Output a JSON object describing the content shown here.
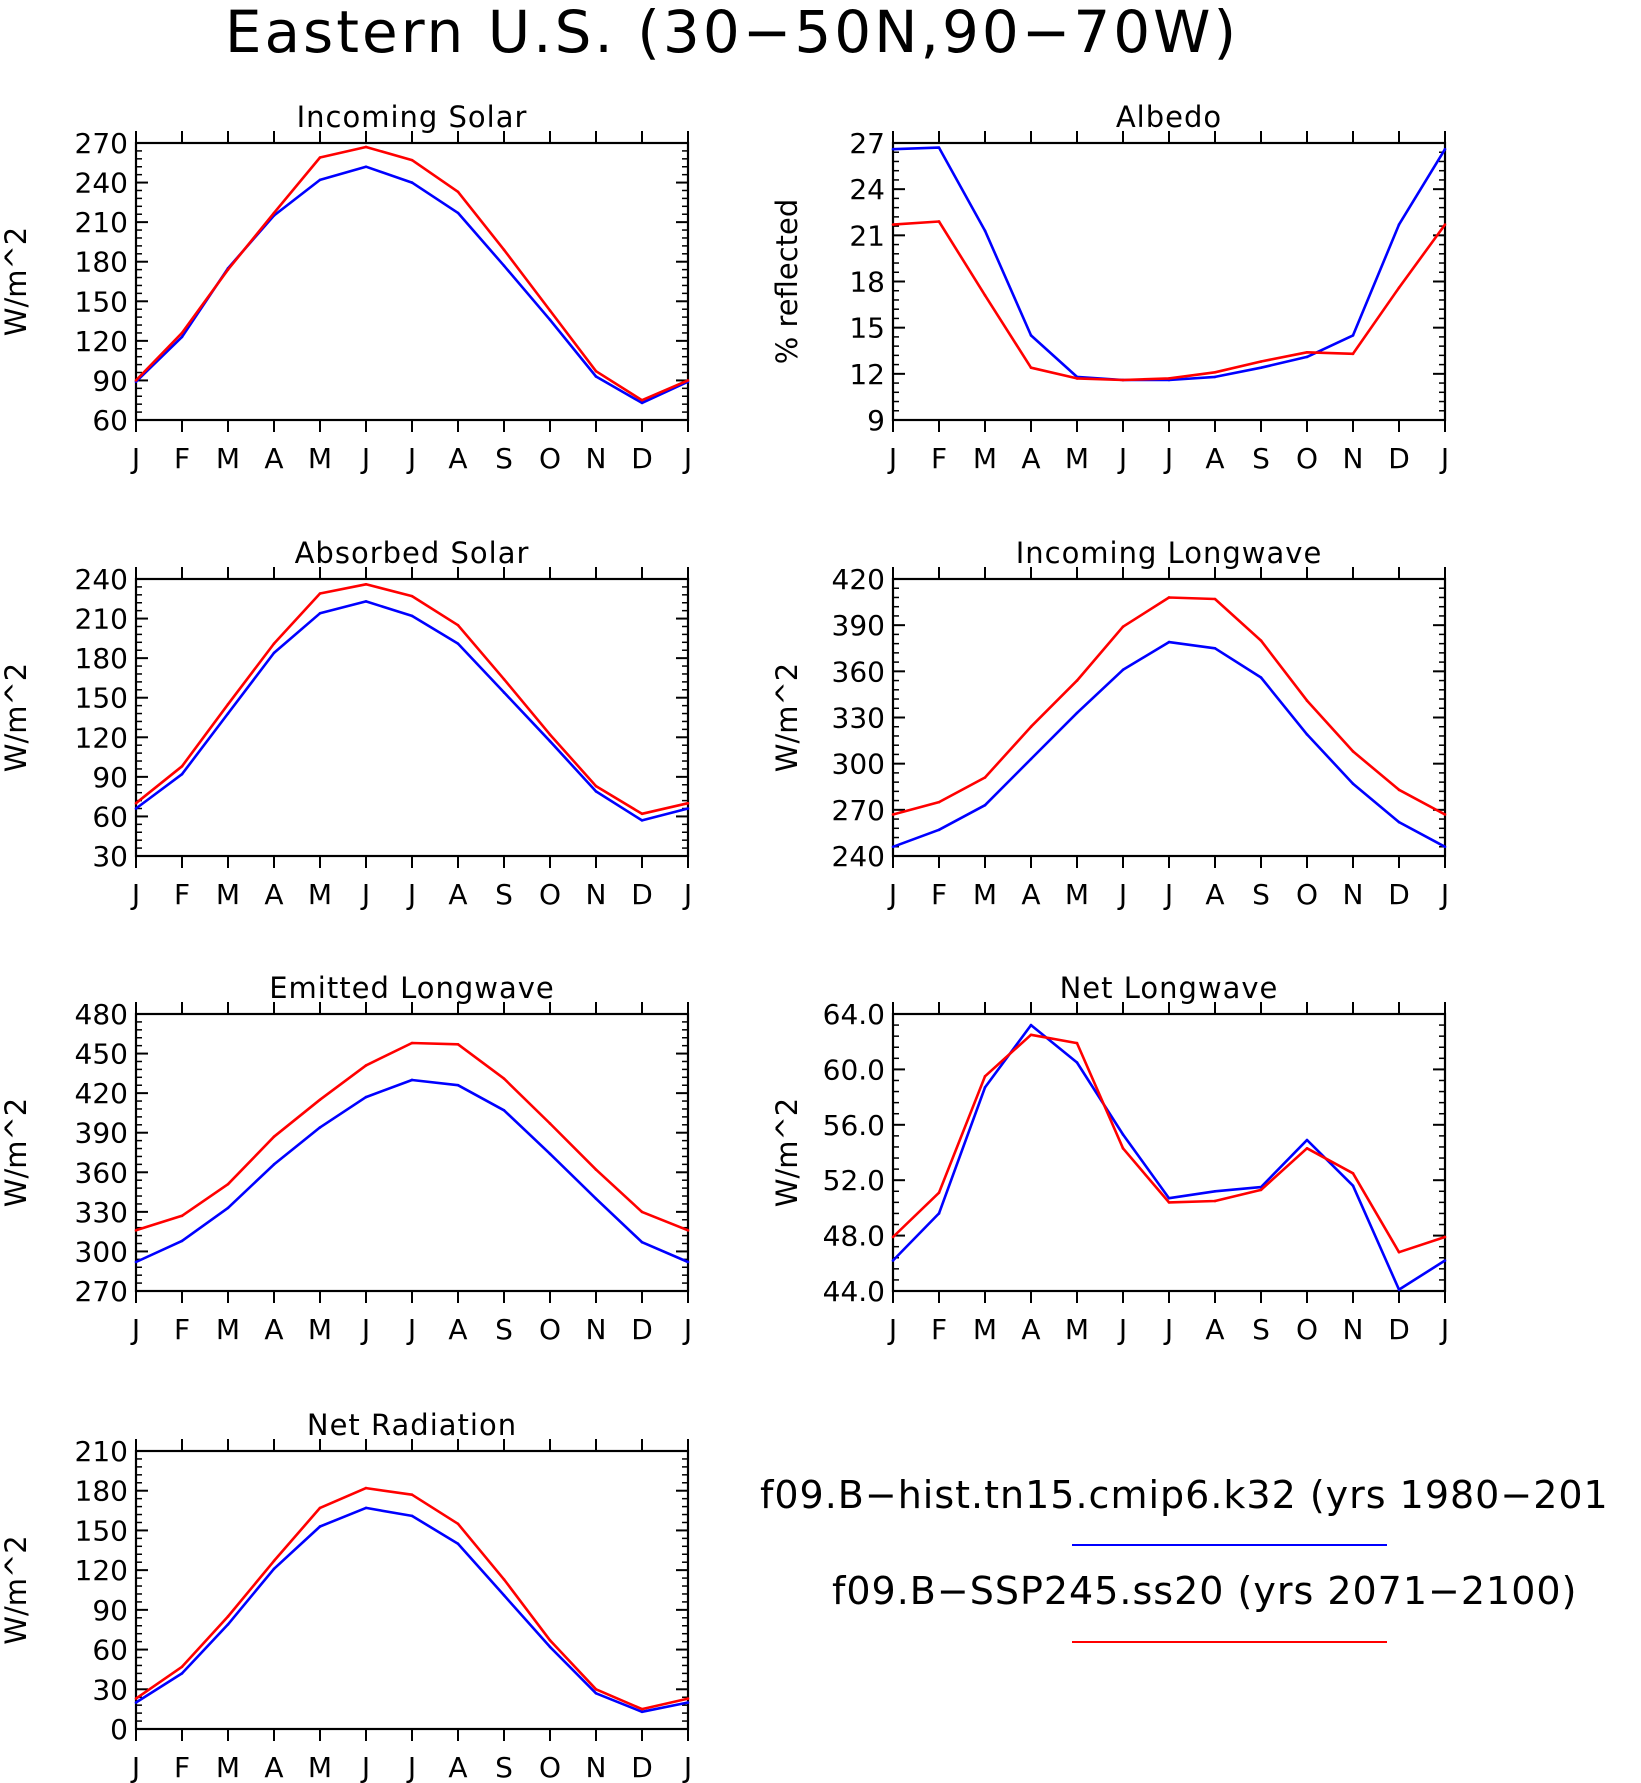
{
  "figure": {
    "title": "Eastern U.S. (30−50N,90−70W)",
    "months": [
      "J",
      "F",
      "M",
      "A",
      "M",
      "J",
      "J",
      "A",
      "S",
      "O",
      "N",
      "D",
      "J"
    ],
    "colors": {
      "hist": "#0000ff",
      "ssp": "#ff0000",
      "axis": "#000000"
    }
  },
  "legend": {
    "entries": [
      {
        "label": "f09.B−hist.tn15.cmip6.k32 (yrs 1980−201",
        "color": "#0000ff"
      },
      {
        "label": "f09.B−SSP245.ss20 (yrs 2071−2100)",
        "color": "#ff0000"
      }
    ]
  },
  "chart_data": [
    {
      "type": "line",
      "title": "Incoming Solar",
      "ylabel": "W/m^2",
      "ylim": [
        60,
        270
      ],
      "yticks": [
        "60",
        "90",
        "120",
        "150",
        "180",
        "210",
        "240",
        "270"
      ],
      "x": [
        "J",
        "F",
        "M",
        "A",
        "M",
        "J",
        "J",
        "A",
        "S",
        "O",
        "N",
        "D",
        "J"
      ],
      "series": [
        {
          "key": "hist",
          "values": [
            89,
            123,
            175,
            215,
            242,
            252,
            240,
            217,
            177,
            136,
            93,
            73,
            89
          ]
        },
        {
          "key": "ssp",
          "values": [
            90,
            126,
            174,
            217,
            259,
            267,
            257,
            233,
            189,
            143,
            97,
            75,
            90
          ]
        }
      ]
    },
    {
      "type": "line",
      "title": "Albedo",
      "ylabel": "% reflected",
      "ylim": [
        9,
        27
      ],
      "yticks": [
        "9",
        "12",
        "15",
        "18",
        "21",
        "24",
        "27"
      ],
      "x": [
        "J",
        "F",
        "M",
        "A",
        "M",
        "J",
        "J",
        "A",
        "S",
        "O",
        "N",
        "D",
        "J"
      ],
      "series": [
        {
          "key": "hist",
          "values": [
            26.6,
            26.7,
            21.3,
            14.5,
            11.8,
            11.6,
            11.6,
            11.8,
            12.4,
            13.1,
            14.5,
            21.7,
            26.6
          ]
        },
        {
          "key": "ssp",
          "values": [
            21.7,
            21.9,
            17.1,
            12.4,
            11.7,
            11.6,
            11.7,
            12.1,
            12.8,
            13.4,
            13.3,
            17.6,
            21.7
          ]
        }
      ]
    },
    {
      "type": "line",
      "title": "Absorbed Solar",
      "ylabel": "W/m^2",
      "ylim": [
        30,
        240
      ],
      "yticks": [
        "30",
        "60",
        "90",
        "120",
        "150",
        "180",
        "210",
        "240"
      ],
      "x": [
        "J",
        "F",
        "M",
        "A",
        "M",
        "J",
        "J",
        "A",
        "S",
        "O",
        "N",
        "D",
        "J"
      ],
      "series": [
        {
          "key": "hist",
          "values": [
            66,
            92,
            138,
            184,
            214,
            223,
            212,
            191,
            154,
            117,
            79,
            57,
            66
          ]
        },
        {
          "key": "ssp",
          "values": [
            70,
            98,
            145,
            191,
            229,
            236,
            227,
            205,
            164,
            122,
            83,
            62,
            70
          ]
        }
      ]
    },
    {
      "type": "line",
      "title": "Incoming Longwave",
      "ylabel": "W/m^2",
      "ylim": [
        240,
        420
      ],
      "yticks": [
        "240",
        "270",
        "300",
        "330",
        "360",
        "390",
        "420"
      ],
      "x": [
        "J",
        "F",
        "M",
        "A",
        "M",
        "J",
        "J",
        "A",
        "S",
        "O",
        "N",
        "D",
        "J"
      ],
      "series": [
        {
          "key": "hist",
          "values": [
            246,
            257,
            273,
            303,
            333,
            361,
            379,
            375,
            356,
            319,
            287,
            262,
            246
          ]
        },
        {
          "key": "ssp",
          "values": [
            267,
            275,
            291,
            324,
            354,
            389,
            408,
            407,
            380,
            341,
            308,
            283,
            267
          ]
        }
      ]
    },
    {
      "type": "line",
      "title": "Emitted Longwave",
      "ylabel": "W/m^2",
      "ylim": [
        270,
        480
      ],
      "yticks": [
        "270",
        "300",
        "330",
        "360",
        "390",
        "420",
        "450",
        "480"
      ],
      "x": [
        "J",
        "F",
        "M",
        "A",
        "M",
        "J",
        "J",
        "A",
        "S",
        "O",
        "N",
        "D",
        "J"
      ],
      "series": [
        {
          "key": "hist",
          "values": [
            292,
            308,
            333,
            366,
            394,
            417,
            430,
            426,
            407,
            374,
            340,
            307,
            292
          ]
        },
        {
          "key": "ssp",
          "values": [
            316,
            327,
            351,
            387,
            415,
            441,
            458,
            457,
            431,
            397,
            362,
            330,
            316
          ]
        }
      ]
    },
    {
      "type": "line",
      "title": "Net Longwave",
      "ylabel": "W/m^2",
      "ylim": [
        44,
        64
      ],
      "yticks": [
        "44.0",
        "48.0",
        "52.0",
        "56.0",
        "60.0",
        "64.0"
      ],
      "x": [
        "J",
        "F",
        "M",
        "A",
        "M",
        "J",
        "J",
        "A",
        "S",
        "O",
        "N",
        "D",
        "J"
      ],
      "series": [
        {
          "key": "hist",
          "values": [
            46.2,
            49.6,
            58.7,
            63.2,
            60.5,
            55.3,
            50.7,
            51.2,
            51.5,
            54.9,
            51.6,
            44.1,
            46.2
          ]
        },
        {
          "key": "ssp",
          "values": [
            47.9,
            51.1,
            59.5,
            62.5,
            61.9,
            54.3,
            50.4,
            50.5,
            51.3,
            54.3,
            52.5,
            46.8,
            47.9
          ]
        }
      ]
    },
    {
      "type": "line",
      "title": "Net Radiation",
      "ylabel": "W/m^2",
      "ylim": [
        0,
        210
      ],
      "yticks": [
        "0",
        "30",
        "60",
        "90",
        "120",
        "150",
        "180",
        "210"
      ],
      "x": [
        "J",
        "F",
        "M",
        "A",
        "M",
        "J",
        "J",
        "A",
        "S",
        "O",
        "N",
        "D",
        "J"
      ],
      "series": [
        {
          "key": "hist",
          "values": [
            20,
            42,
            79,
            121,
            153,
            167,
            161,
            140,
            101,
            62,
            27,
            13,
            20
          ]
        },
        {
          "key": "ssp",
          "values": [
            23,
            47,
            85,
            127,
            167,
            182,
            177,
            155,
            113,
            67,
            30,
            15,
            23
          ]
        }
      ]
    }
  ]
}
